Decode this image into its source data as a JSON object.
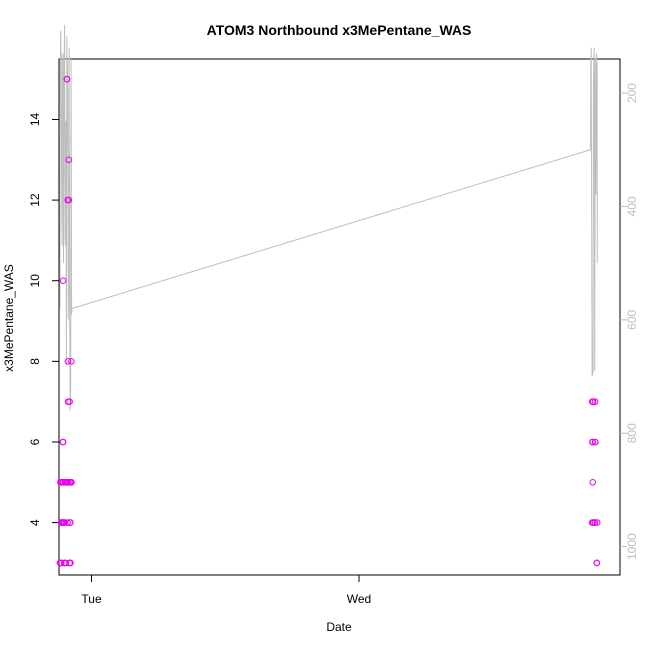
{
  "chart_data": {
    "type": "scatter",
    "title": "ATOM3 Northbound x3MePentane_WAS",
    "xlabel": "Date",
    "ylabel": "x3MePentane_WAS",
    "x_axis": {
      "kind": "date",
      "range": [
        "Mon 21:05",
        "Wed 23:25"
      ],
      "ticks": [
        {
          "label": "Tue",
          "value": "Tue 00:00"
        },
        {
          "label": "Wed",
          "value": "Wed 00:00"
        }
      ]
    },
    "y_axis": {
      "range": [
        2.7,
        15.5
      ],
      "ticks": [
        4,
        6,
        8,
        10,
        12,
        14
      ]
    },
    "y2_axis": {
      "range": [
        1050,
        140
      ],
      "reversed": true,
      "color": "#bebebe",
      "ticks": [
        200,
        400,
        600,
        800,
        1000
      ]
    },
    "grid": false,
    "series": [
      {
        "kind": "points",
        "color": "#ee00ee",
        "x": [
          "Mon 21:10",
          "Mon 21:11",
          "Mon 21:12",
          "Mon 21:13",
          "Mon 21:14",
          "Mon 21:16",
          "Mon 21:17",
          "Mon 21:18",
          "Mon 21:18",
          "Mon 21:19",
          "Mon 21:20",
          "Mon 21:22",
          "Mon 21:26",
          "Mon 21:26",
          "Mon 21:27",
          "Mon 21:27",
          "Mon 21:28",
          "Mon 21:28",
          "Mon 21:28",
          "Mon 21:29",
          "Mon 21:30",
          "Mon 21:33",
          "Mon 21:35",
          "Mon 21:35",
          "Mon 21:35",
          "Mon 21:38",
          "Mon 21:41",
          "Mon 21:44",
          "Mon 21:46",
          "Mon 21:47",
          "Mon 21:47",
          "Mon 21:48",
          "Mon 21:50",
          "Mon 21:51",
          "Mon 21:52",
          "Mon 21:53",
          "Mon 21:54",
          "Mon 21:56",
          "Mon 21:57",
          "Mon 21:58",
          "Mon 22:02",
          "Mon 22:02",
          "Mon 22:03",
          "Mon 22:04",
          "Mon 22:05",
          "Mon 22:05",
          "Mon 22:06",
          "Mon 22:06",
          "Mon 22:07",
          "Mon 22:08",
          "Mon 22:11",
          "Mon 22:11",
          "Mon 22:12",
          "Wed 20:55",
          "Wed 20:56",
          "Wed 20:57",
          "Wed 20:57",
          "Wed 20:57",
          "Wed 20:58",
          "Wed 20:58",
          "Wed 20:58",
          "Wed 21:00",
          "Wed 21:00",
          "Wed 21:09",
          "Wed 21:10",
          "Wed 21:10",
          "Wed 21:11",
          "Wed 21:11",
          "Wed 21:12",
          "Wed 21:20",
          "Wed 21:20",
          "Wed 21:22"
        ],
        "y": [
          3,
          3,
          5,
          3,
          5,
          4,
          5,
          3,
          5,
          4,
          5,
          4,
          6,
          5,
          6,
          10,
          4,
          5,
          4,
          5,
          4,
          3,
          4,
          4,
          3,
          5,
          3,
          5,
          5,
          5,
          15,
          15,
          5,
          4,
          12,
          8,
          7,
          5,
          12,
          13,
          3,
          7,
          3,
          5,
          4,
          3,
          4,
          4,
          3,
          5,
          5,
          8,
          5,
          4,
          7,
          7,
          6,
          6,
          5,
          7,
          6,
          7,
          4,
          4,
          4,
          4,
          7,
          6,
          6,
          3,
          3,
          4
        ]
      },
      {
        "kind": "line",
        "axis": "y2",
        "color": "#bebebe",
        "x": [
          "Mon 21:10",
          "Mon 21:12",
          "Mon 21:14",
          "Mon 21:17",
          "Mon 21:20",
          "Mon 21:22",
          "Mon 21:24",
          "Mon 21:26",
          "Mon 21:29",
          "Mon 21:32",
          "Mon 21:35",
          "Mon 21:38",
          "Mon 21:40",
          "Mon 21:41",
          "Mon 21:43",
          "Mon 21:45",
          "Mon 21:47",
          "Mon 21:50",
          "Mon 21:52",
          "Mon 21:55",
          "Mon 21:58",
          "Mon 22:00",
          "Mon 22:02",
          "Mon 22:05",
          "Mon 22:08",
          "Mon 22:10",
          "Mon 22:13",
          "Mon 22:15",
          "Wed 20:46",
          "Wed 20:48",
          "Wed 20:50",
          "Wed 20:55",
          "Wed 21:00",
          "Wed 21:02",
          "Wed 21:06",
          "Wed 21:09",
          "Wed 21:12",
          "Wed 21:16",
          "Wed 21:19",
          "Wed 21:20",
          "Wed 21:22",
          "Wed 21:23"
        ],
        "y": [
          580,
          160,
          90,
          140,
          420,
          470,
          150,
          130,
          500,
          160,
          80,
          460,
          470,
          250,
          360,
          680,
          100,
          300,
          140,
          600,
          520,
          120,
          530,
          760,
          720,
          140,
          590,
          580,
          300,
          150,
          120,
          700,
          690,
          180,
          120,
          690,
          140,
          380,
          130,
          140,
          150,
          500
        ]
      }
    ]
  }
}
